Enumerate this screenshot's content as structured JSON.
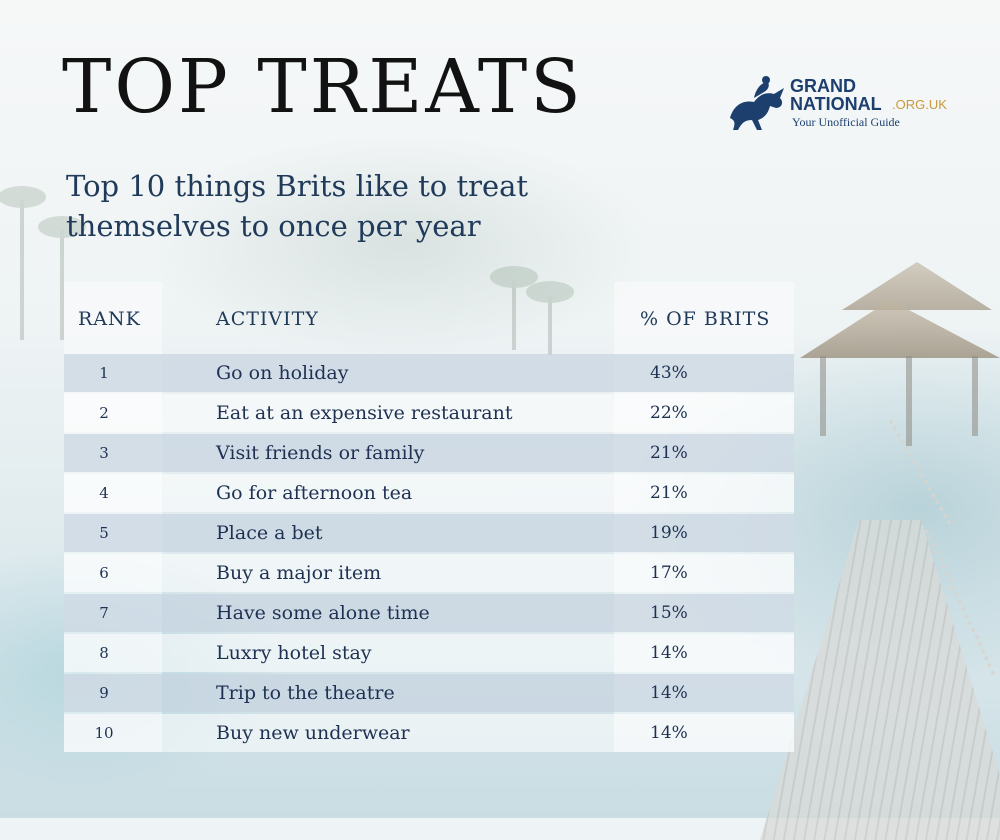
{
  "title": "TOP TREATS",
  "subtitle_line1": "Top 10 things Brits like to treat",
  "subtitle_line2": "themselves to once per year",
  "logo": {
    "grand": "GRAND",
    "national": "NATIONAL",
    "org": ".ORG.UK",
    "tagline": "Your Unofficial Guide",
    "icon": "horse-jockey-icon"
  },
  "headers": {
    "rank": "RANK",
    "activity": "ACTIVITY",
    "pct": "% OF BRITS"
  },
  "rows": [
    {
      "rank": "1",
      "activity": "Go on holiday",
      "pct": "43%"
    },
    {
      "rank": "2",
      "activity": "Eat at an expensive restaurant",
      "pct": "22%"
    },
    {
      "rank": "3",
      "activity": "Visit friends or family",
      "pct": "21%"
    },
    {
      "rank": "4",
      "activity": "Go for afternoon tea",
      "pct": "21%"
    },
    {
      "rank": "5",
      "activity": "Place a bet",
      "pct": "19%"
    },
    {
      "rank": "6",
      "activity": "Buy a major item",
      "pct": "17%"
    },
    {
      "rank": "7",
      "activity": "Have some alone time",
      "pct": "15%"
    },
    {
      "rank": "8",
      "activity": "Luxry hotel stay",
      "pct": "14%"
    },
    {
      "rank": "9",
      "activity": "Trip to the theatre",
      "pct": "14%"
    },
    {
      "rank": "10",
      "activity": "Buy new underwear",
      "pct": "14%"
    }
  ],
  "colors": {
    "title": "#121212",
    "navy": "#203a5a",
    "row_shade": "#c8d4e0",
    "logo_blue": "#1c3f6e",
    "logo_gold": "#c79a3b"
  }
}
